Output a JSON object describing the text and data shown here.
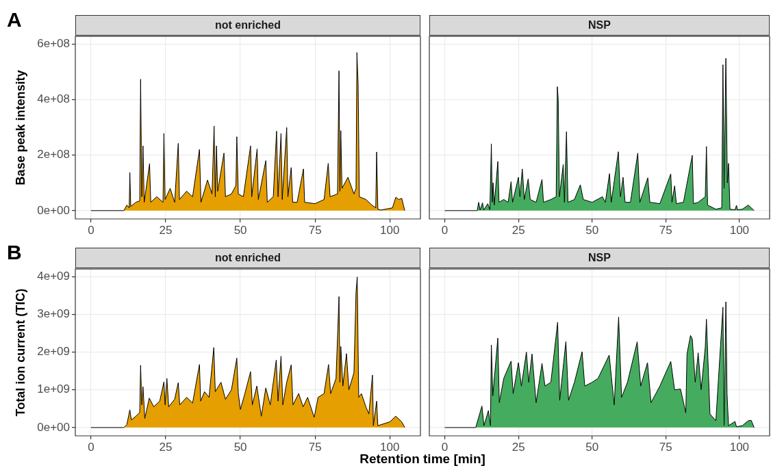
{
  "chart_data": [
    {
      "type": "area",
      "title": "not enriched",
      "ylabel": "Base peak intensity",
      "annotations": [
        "A"
      ],
      "xlim": [
        -5.25,
        110.25
      ],
      "xticks": [
        0,
        25,
        50,
        75,
        100
      ],
      "ylim": [
        -30000000.0,
        627000000.0
      ],
      "yticks": [
        {
          "value": 0,
          "label": "0e+00"
        },
        {
          "value": 200000000.0,
          "label": "2e+08"
        },
        {
          "value": 400000000.0,
          "label": "4e+08"
        },
        {
          "value": 600000000.0,
          "label": "6e+08"
        }
      ],
      "grid": true,
      "legend": false,
      "series": [
        {
          "color": "#e69f00",
          "x": [
            0,
            11,
            12,
            12.8,
            13,
            13.3,
            15,
            16.3,
            16.6,
            17,
            17.4,
            17.8,
            19.6,
            20,
            22,
            24.1,
            24.4,
            24.8,
            26.5,
            28,
            29.2,
            29.6,
            32,
            34,
            36.3,
            36.8,
            39,
            40.5,
            41.2,
            41.6,
            42,
            42.4,
            44.5,
            45,
            47,
            48.5,
            48.8,
            49.3,
            51,
            53.4,
            53.8,
            55.6,
            56,
            58.5,
            59,
            61,
            62.1,
            62.6,
            63.6,
            64,
            65.5,
            65.9,
            67,
            67.5,
            69,
            71.1,
            71.5,
            75,
            78,
            79.4,
            80,
            82.5,
            83,
            83.3,
            83.6,
            84,
            86,
            88,
            88.7,
            89,
            89.4,
            89.8,
            92,
            94,
            95.3,
            95.6,
            96,
            97,
            100.9,
            102,
            103,
            104,
            105
          ],
          "values": [
            0,
            0,
            20000000.0,
            10000000.0,
            137000000.0,
            15000000.0,
            30000000.0,
            35000000.0,
            473000000.0,
            50000000.0,
            233000000.0,
            30000000.0,
            169000000.0,
            30000000.0,
            50000000.0,
            30000000.0,
            278000000.0,
            40000000.0,
            80000000.0,
            30000000.0,
            242000000.0,
            40000000.0,
            70000000.0,
            50000000.0,
            220000000.0,
            30000000.0,
            110000000.0,
            60000000.0,
            304000000.0,
            50000000.0,
            233000000.0,
            70000000.0,
            207000000.0,
            50000000.0,
            60000000.0,
            90000000.0,
            266000000.0,
            60000000.0,
            50000000.0,
            233000000.0,
            50000000.0,
            222000000.0,
            40000000.0,
            180000000.0,
            30000000.0,
            50000000.0,
            286000000.0,
            50000000.0,
            278000000.0,
            40000000.0,
            299000000.0,
            50000000.0,
            155000000.0,
            30000000.0,
            30000000.0,
            150000000.0,
            30000000.0,
            25000000.0,
            40000000.0,
            170000000.0,
            50000000.0,
            60000000.0,
            503000000.0,
            70000000.0,
            288000000.0,
            80000000.0,
            120000000.0,
            60000000.0,
            80000000.0,
            569000000.0,
            457000000.0,
            50000000.0,
            40000000.0,
            20000000.0,
            10000000.0,
            211000000.0,
            5000000.0,
            2000000.0,
            10000000.0,
            48000000.0,
            40000000.0,
            44000000.0,
            0
          ]
        }
      ]
    },
    {
      "type": "area",
      "title": "NSP",
      "tick_labels": "x",
      "xlim": [
        -5.25,
        110.25
      ],
      "xticks": [
        0,
        25,
        50,
        75,
        100
      ],
      "ylim": [
        -30000000.0,
        627000000.0
      ],
      "yticks": [
        {
          "value": 0,
          "label": null
        },
        {
          "value": 200000000.0,
          "label": null
        },
        {
          "value": 400000000.0,
          "label": null
        },
        {
          "value": 600000000.0,
          "label": null
        }
      ],
      "grid": true,
      "legend": false,
      "series": [
        {
          "color": "#45ac5f",
          "x": [
            0,
            11,
            11.5,
            12,
            12.8,
            13.2,
            14.6,
            15.3,
            15.8,
            16.1,
            16.4,
            16.8,
            18,
            18.4,
            20,
            21.5,
            22.5,
            23,
            25,
            25.5,
            26.3,
            27,
            28.3,
            29,
            31,
            33,
            33.5,
            36,
            37.8,
            38.2,
            38.5,
            38.9,
            40.2,
            40.6,
            41.3,
            41.8,
            44,
            46,
            47,
            50,
            53.5,
            54.5,
            55.9,
            56.5,
            58.9,
            59.6,
            60.5,
            61.2,
            63,
            65.5,
            66.2,
            68.9,
            69.6,
            73,
            76.7,
            77.1,
            78,
            78.6,
            81,
            84,
            84.4,
            86,
            88.4,
            88.8,
            89.2,
            92,
            94,
            94.4,
            94.8,
            95.4,
            95.9,
            96.3,
            96.8,
            98.5,
            99,
            99.4,
            101,
            103,
            105
          ],
          "values": [
            0,
            0,
            30000000.0,
            2000000.0,
            28000000.0,
            2000000.0,
            25000000.0,
            3000000.0,
            240000000.0,
            30000000.0,
            100000000.0,
            20000000.0,
            177000000.0,
            30000000.0,
            40000000.0,
            30000000.0,
            104000000.0,
            30000000.0,
            120000000.0,
            50000000.0,
            150000000.0,
            40000000.0,
            114000000.0,
            40000000.0,
            30000000.0,
            112000000.0,
            30000000.0,
            40000000.0,
            50000000.0,
            446000000.0,
            400000000.0,
            50000000.0,
            166000000.0,
            30000000.0,
            284000000.0,
            30000000.0,
            40000000.0,
            93000000.0,
            40000000.0,
            30000000.0,
            50000000.0,
            30000000.0,
            133000000.0,
            30000000.0,
            212000000.0,
            50000000.0,
            120000000.0,
            30000000.0,
            30000000.0,
            207000000.0,
            30000000.0,
            118000000.0,
            30000000.0,
            25000000.0,
            132000000.0,
            30000000.0,
            89000000.0,
            25000000.0,
            30000000.0,
            199000000.0,
            25000000.0,
            30000000.0,
            50000000.0,
            231000000.0,
            20000000.0,
            5000000.0,
            10000000.0,
            525000000.0,
            80000000.0,
            548000000.0,
            100000000.0,
            170000000.0,
            5000000.0,
            3000000.0,
            19000000.0,
            3000000.0,
            5000000.0,
            20000000.0,
            0
          ]
        }
      ]
    },
    {
      "type": "area",
      "title": "not enriched",
      "ylabel": "Total ion current (TIC)",
      "xlabel": "Retention time [min]",
      "annotations": [
        "B"
      ],
      "xlim": [
        -5.25,
        110.25
      ],
      "xticks": [
        0,
        25,
        50,
        75,
        100
      ],
      "ylim": [
        -220000000.0,
        4200000000.0
      ],
      "yticks": [
        {
          "value": 0,
          "label": "0e+00"
        },
        {
          "value": 1000000000.0,
          "label": "1e+09"
        },
        {
          "value": 2000000000.0,
          "label": "2e+09"
        },
        {
          "value": 3000000000.0,
          "label": "3e+09"
        },
        {
          "value": 4000000000.0,
          "label": "4e+09"
        }
      ],
      "grid": true,
      "legend": false,
      "series": [
        {
          "color": "#e69f00",
          "x": [
            0,
            11,
            12,
            13,
            13.5,
            15,
            16.3,
            16.6,
            17,
            17.4,
            18,
            19.5,
            21,
            23,
            24.4,
            24.8,
            25.4,
            26,
            28,
            29.2,
            29.7,
            32,
            34,
            36.3,
            36.7,
            38,
            39.5,
            41.1,
            41.6,
            43.5,
            45,
            47,
            48.8,
            49.3,
            50,
            51.5,
            53.4,
            54,
            55.5,
            57,
            58.5,
            60,
            62,
            62.6,
            63.6,
            64.2,
            65.5,
            67,
            67.6,
            69.5,
            71,
            72.5,
            74.7,
            76,
            78,
            79.5,
            80.2,
            82,
            83,
            83.3,
            83.6,
            84.3,
            85.5,
            86.3,
            88,
            88.7,
            89.1,
            89.6,
            90.5,
            92,
            93,
            94.2,
            94.5,
            95.6,
            96,
            100,
            102,
            104,
            105
          ],
          "values": [
            0,
            0,
            80000000.0,
            470000000.0,
            200000000.0,
            300000000.0,
            400000000.0,
            1650000000.0,
            600000000.0,
            1080000000.0,
            240000000.0,
            780000000.0,
            550000000.0,
            700000000.0,
            1210000000.0,
            600000000.0,
            1300000000.0,
            550000000.0,
            750000000.0,
            1190000000.0,
            600000000.0,
            800000000.0,
            650000000.0,
            1670000000.0,
            700000000.0,
            950000000.0,
            800000000.0,
            2120000000.0,
            950000000.0,
            1200000000.0,
            750000000.0,
            1000000000.0,
            1840000000.0,
            900000000.0,
            480000000.0,
            900000000.0,
            1480000000.0,
            600000000.0,
            1100000000.0,
            300000000.0,
            1050000000.0,
            600000000.0,
            1790000000.0,
            700000000.0,
            1890000000.0,
            600000000.0,
            1200000000.0,
            1660000000.0,
            600000000.0,
            900000000.0,
            550000000.0,
            800000000.0,
            270000000.0,
            800000000.0,
            900000000.0,
            1670000000.0,
            900000000.0,
            1300000000.0,
            3470000000.0,
            1200000000.0,
            2150000000.0,
            1100000000.0,
            1960000000.0,
            1000000000.0,
            1450000000.0,
            3590000000.0,
            3990000000.0,
            800000000.0,
            900000000.0,
            550000000.0,
            360000000.0,
            1390000000.0,
            50000000.0,
            700000000.0,
            50000000.0,
            150000000.0,
            300000000.0,
            150000000.0,
            0
          ]
        }
      ]
    },
    {
      "type": "area",
      "title": "NSP",
      "tick_labels": "x",
      "xlim": [
        -5.25,
        110.25
      ],
      "xticks": [
        0,
        25,
        50,
        75,
        100
      ],
      "ylim": [
        -220000000.0,
        4200000000.0
      ],
      "yticks": [
        {
          "value": 0,
          "label": null
        },
        {
          "value": 1000000000.0,
          "label": null
        },
        {
          "value": 2000000000.0,
          "label": null
        },
        {
          "value": 3000000000.0,
          "label": null
        },
        {
          "value": 4000000000.0,
          "label": null
        }
      ],
      "grid": true,
      "legend": false,
      "series": [
        {
          "color": "#45ac5f",
          "x": [
            0,
            10.5,
            12.6,
            13.3,
            14.8,
            15.5,
            15.8,
            16.3,
            18,
            18.5,
            20,
            22.5,
            23.2,
            25,
            26,
            27.7,
            28.5,
            29.6,
            31,
            33,
            34,
            36,
            38.3,
            39,
            41.1,
            42,
            44,
            46.6,
            47.5,
            50,
            52,
            55.8,
            57.5,
            59,
            60,
            62,
            65.3,
            66.5,
            68.8,
            70,
            73,
            76.7,
            78,
            80,
            81.8,
            82.2,
            83.4,
            84,
            85,
            86,
            87,
            88.4,
            88.8,
            90,
            92,
            94.4,
            94.8,
            95.4,
            95.8,
            96.3,
            98.5,
            99,
            101,
            103,
            104,
            105
          ],
          "values": [
            0,
            0,
            570000000.0,
            50000000.0,
            450000000.0,
            50000000.0,
            2190000000.0,
            840000000.0,
            2370000000.0,
            660000000.0,
            1300000000.0,
            1760000000.0,
            900000000.0,
            1720000000.0,
            1100000000.0,
            2000000000.0,
            1200000000.0,
            1950000000.0,
            660000000.0,
            1700000000.0,
            1100000000.0,
            1200000000.0,
            2790000000.0,
            720000000.0,
            2280000000.0,
            720000000.0,
            1200000000.0,
            2010000000.0,
            1100000000.0,
            1200000000.0,
            1300000000.0,
            1920000000.0,
            600000000.0,
            2930000000.0,
            800000000.0,
            1200000000.0,
            2270000000.0,
            1100000000.0,
            1720000000.0,
            660000000.0,
            1100000000.0,
            1750000000.0,
            1000000000.0,
            1020000000.0,
            390000000.0,
            1950000000.0,
            2440000000.0,
            2350000000.0,
            1200000000.0,
            1980000000.0,
            1000000000.0,
            2120000000.0,
            2870000000.0,
            360000000.0,
            180000000.0,
            3190000000.0,
            50000000.0,
            3330000000.0,
            900000000.0,
            50000000.0,
            160000000.0,
            20000000.0,
            50000000.0,
            180000000.0,
            190000000.0,
            0
          ]
        }
      ]
    }
  ]
}
